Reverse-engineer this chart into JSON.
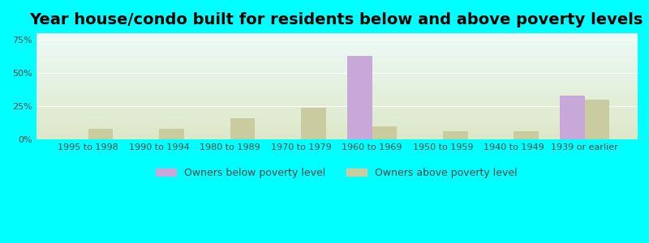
{
  "title": "Year house/condo built for residents below and above poverty levels",
  "categories": [
    "1995 to 1998",
    "1990 to 1994",
    "1980 to 1989",
    "1970 to 1979",
    "1960 to 1969",
    "1950 to 1959",
    "1940 to 1949",
    "1939 or earlier"
  ],
  "below_poverty": [
    0,
    0,
    0,
    0,
    63,
    0,
    0,
    33
  ],
  "above_poverty": [
    8,
    8,
    16,
    24,
    10,
    6,
    6,
    30
  ],
  "below_color": "#c8a8d8",
  "above_color": "#c8cc9e",
  "bar_width": 0.35,
  "ylim": [
    0,
    80
  ],
  "yticks": [
    0,
    25,
    50,
    75
  ],
  "ytick_labels": [
    "0%",
    "25%",
    "50%",
    "75%"
  ],
  "background_top": "#edfaf8",
  "background_bottom": "#dde8c8",
  "outer_bg": "#00ffff",
  "legend_below_label": "Owners below poverty level",
  "legend_above_label": "Owners above poverty level",
  "title_fontsize": 14,
  "tick_fontsize": 8,
  "legend_fontsize": 9
}
